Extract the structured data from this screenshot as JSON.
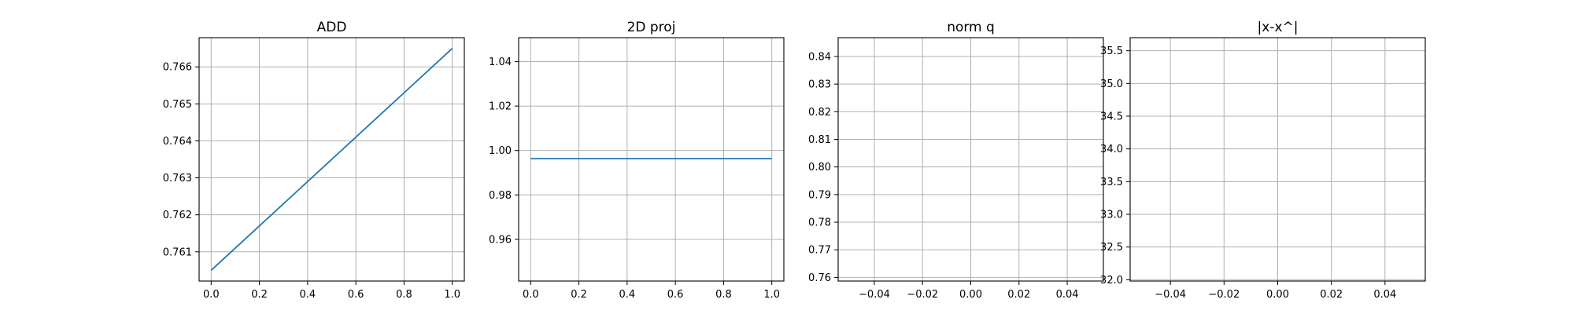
{
  "colors": {
    "line": "#1f77b4",
    "grid": "#b0b0b0",
    "axes": "#000000",
    "background": "#ffffff"
  },
  "chart_data": [
    {
      "type": "line",
      "title": "ADD",
      "xlabel": "",
      "ylabel": "",
      "grid": true,
      "xlim": [
        -0.05,
        1.05
      ],
      "ylim": [
        0.76021,
        0.76679
      ],
      "xticks": [
        0.0,
        0.2,
        0.4,
        0.6,
        0.8,
        1.0
      ],
      "xtick_labels": [
        "0.0",
        "0.2",
        "0.4",
        "0.6",
        "0.8",
        "1.0"
      ],
      "yticks": [
        0.761,
        0.762,
        0.763,
        0.764,
        0.765,
        0.766
      ],
      "ytick_labels": [
        "0.761",
        "0.762",
        "0.763",
        "0.764",
        "0.765",
        "0.766"
      ],
      "series": [
        {
          "x": [
            0.0,
            1.0
          ],
          "y": [
            0.7605,
            0.7665
          ]
        }
      ]
    },
    {
      "type": "line",
      "title": "2D proj",
      "xlabel": "",
      "ylabel": "",
      "grid": true,
      "xlim": [
        -0.05,
        1.05
      ],
      "ylim": [
        0.9412,
        1.0508
      ],
      "xticks": [
        0.0,
        0.2,
        0.4,
        0.6,
        0.8,
        1.0
      ],
      "xtick_labels": [
        "0.0",
        "0.2",
        "0.4",
        "0.6",
        "0.8",
        "1.0"
      ],
      "yticks": [
        0.96,
        0.98,
        1.0,
        1.02,
        1.04
      ],
      "ytick_labels": [
        "0.96",
        "0.98",
        "1.00",
        "1.02",
        "1.04"
      ],
      "series": [
        {
          "x": [
            0.0,
            1.0
          ],
          "y": [
            0.9963,
            0.9963
          ]
        }
      ]
    },
    {
      "type": "line",
      "title": "norm q",
      "xlabel": "",
      "ylabel": "",
      "grid": true,
      "xlim": [
        -0.055,
        0.055
      ],
      "ylim": [
        0.7587,
        0.8468
      ],
      "xticks": [
        -0.04,
        -0.02,
        0.0,
        0.02,
        0.04
      ],
      "xtick_labels": [
        "−0.04",
        "−0.02",
        "0.00",
        "0.02",
        "0.04"
      ],
      "yticks": [
        0.76,
        0.77,
        0.78,
        0.79,
        0.8,
        0.81,
        0.82,
        0.83,
        0.84
      ],
      "ytick_labels": [
        "0.76",
        "0.77",
        "0.78",
        "0.79",
        "0.80",
        "0.81",
        "0.82",
        "0.83",
        "0.84"
      ],
      "series": []
    },
    {
      "type": "line",
      "title": "|x-x^|",
      "xlabel": "",
      "ylabel": "",
      "grid": true,
      "xlim": [
        -0.055,
        0.055
      ],
      "ylim": [
        31.98,
        35.7
      ],
      "xticks": [
        -0.04,
        -0.02,
        0.0,
        0.02,
        0.04
      ],
      "xtick_labels": [
        "−0.04",
        "−0.02",
        "0.00",
        "0.02",
        "0.04"
      ],
      "yticks": [
        32.0,
        32.5,
        33.0,
        33.5,
        34.0,
        34.5,
        35.0,
        35.5
      ],
      "ytick_labels": [
        "32.0",
        "32.5",
        "33.0",
        "33.5",
        "34.0",
        "34.5",
        "35.0",
        "35.5"
      ],
      "series": []
    }
  ]
}
